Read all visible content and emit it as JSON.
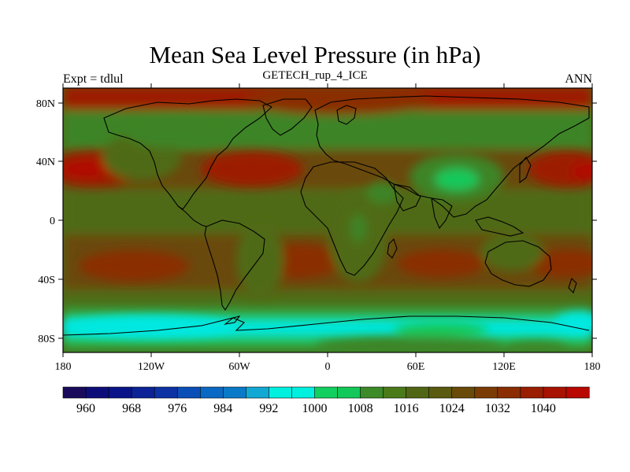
{
  "header": {
    "title": "Mean Sea Level Pressure (in hPa)",
    "subtitle": "GETECH_rup_4_ICE",
    "left_label": "Expt = tdlul",
    "right_label": "ANN"
  },
  "map": {
    "lat_ticks": [
      "80N",
      "40N",
      "0",
      "40S",
      "80S"
    ],
    "lon_ticks": [
      "180",
      "120W",
      "60W",
      "0",
      "60E",
      "120E",
      "180"
    ]
  },
  "colorbar": {
    "labels": [
      "960",
      "968",
      "976",
      "984",
      "992",
      "1000",
      "1008",
      "1016",
      "1024",
      "1032",
      "1040"
    ],
    "colors": [
      "#1a0a5c",
      "#0d0d7a",
      "#0a1488",
      "#0b2396",
      "#0c32a4",
      "#0a4fb8",
      "#0a69c4",
      "#0a7ac8",
      "#12a8d4",
      "#00f0e0",
      "#00f0e0",
      "#12d060",
      "#12c858",
      "#3c8a28",
      "#4a7a1a",
      "#506614",
      "#5a5a10",
      "#6a4a08",
      "#7a3c04",
      "#8a2e02",
      "#9a1e00",
      "#a81200",
      "#b80800"
    ]
  },
  "palette": {
    "low_green": "#16c85a",
    "mid_green": "#3e8426",
    "olive": "#4f6a16",
    "brown": "#7a3a06",
    "dark_red": "#9c1a00",
    "red": "#b00c00",
    "cyan": "#00e8e0",
    "light_green": "#20d070"
  }
}
